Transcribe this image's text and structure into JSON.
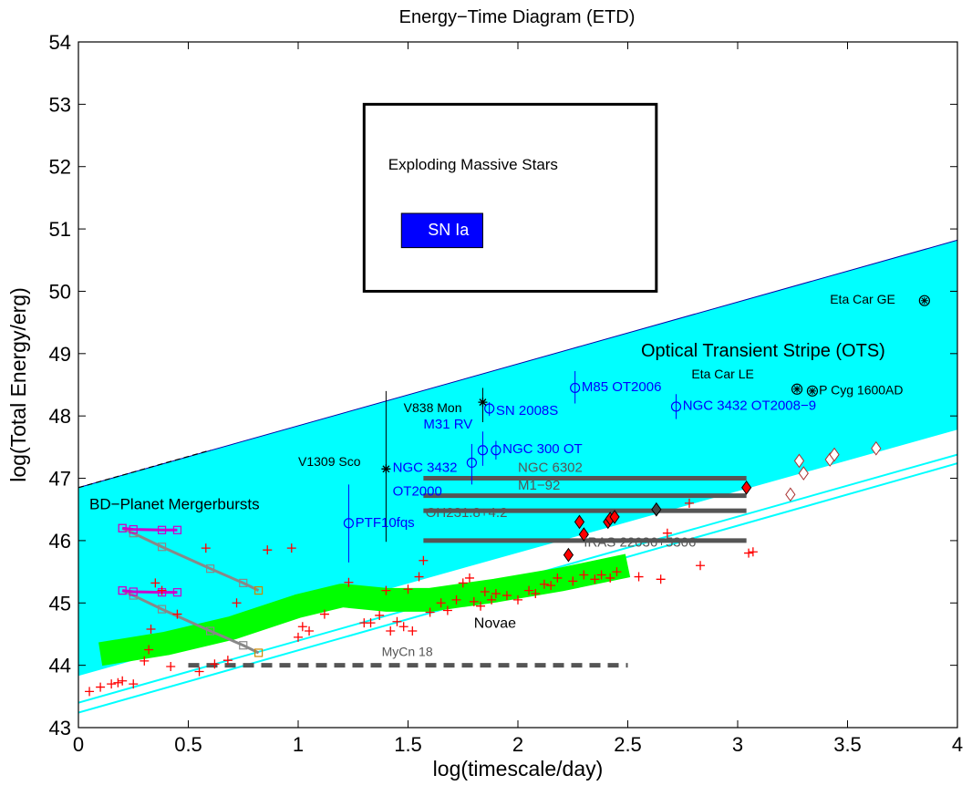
{
  "chart_data": {
    "type": "scatter",
    "title": "Energy−Time Diagram (ETD)",
    "xlabel": "log(timescale/day)",
    "ylabel": "log(Total Energy/erg)",
    "xlim": [
      0,
      4
    ],
    "ylim": [
      43,
      54
    ],
    "xticks": [
      "0",
      "0.5",
      "1",
      "1.5",
      "2",
      "2.5",
      "3",
      "3.5",
      "4"
    ],
    "yticks": [
      "43",
      "44",
      "45",
      "46",
      "47",
      "48",
      "49",
      "50",
      "51",
      "52",
      "53",
      "54"
    ],
    "grid": false,
    "colors": {
      "stripe": "#00ffff",
      "novae": "#00ff00",
      "blue_label": "#0000ff",
      "crosses": "#ff0000",
      "bars": "#555555",
      "diamond_filled": "#ff0000",
      "magenta": "#cc00cc",
      "orange": "#cc8800"
    },
    "stripe": {
      "x": [
        0,
        4
      ],
      "upper": [
        46.85,
        50.82
      ],
      "lower": [
        43.83,
        47.78
      ]
    },
    "white_lines": [
      {
        "x": [
          0,
          4
        ],
        "y": [
          43.62,
          47.58
        ]
      },
      {
        "x": [
          0,
          4
        ],
        "y": [
          43.47,
          47.43
        ]
      }
    ],
    "cyan_lines": [
      {
        "x": [
          0,
          4
        ],
        "y": [
          43.4,
          47.38
        ]
      },
      {
        "x": [
          0,
          4
        ],
        "y": [
          43.24,
          47.24
        ]
      }
    ],
    "novae_band": {
      "x": [
        0.1,
        0.4,
        0.7,
        1.0,
        1.2,
        1.4,
        1.6,
        1.9,
        2.2,
        2.5
      ],
      "y": [
        44.18,
        44.35,
        44.6,
        44.95,
        45.12,
        45.05,
        45.05,
        45.2,
        45.38,
        45.6
      ]
    },
    "box": {
      "x0": 1.3,
      "x1": 2.63,
      "y0": 50.0,
      "y1": 53.0
    },
    "sn_ia_rect": {
      "x0": 1.47,
      "x1": 1.84,
      "y0": 50.7,
      "y1": 51.25
    },
    "horizontal_bars": [
      {
        "label": "NGC 6302",
        "x0": 1.57,
        "x1": 3.04,
        "y": 47.0
      },
      {
        "label": "M1−92",
        "x0": 1.57,
        "x1": 3.04,
        "y": 46.72
      },
      {
        "label": "OH231.8+4.2",
        "x0": 1.57,
        "x1": 3.04,
        "y": 46.48
      },
      {
        "label": "IRAS 22036+5306",
        "x0": 1.57,
        "x1": 3.04,
        "y": 46.0
      }
    ],
    "mycn18": {
      "label": "MyCn 18",
      "x0": 0.5,
      "x1": 2.5,
      "y": 44.0
    },
    "bd_tracks": [
      {
        "color": "#888888",
        "x": [
          0.2,
          0.25,
          0.38,
          0.6,
          0.75,
          0.82
        ],
        "y": [
          46.2,
          46.12,
          45.9,
          45.55,
          45.32,
          45.2
        ]
      },
      {
        "color": "#888888",
        "x": [
          0.2,
          0.25,
          0.38,
          0.6,
          0.75,
          0.82
        ],
        "y": [
          45.2,
          45.12,
          44.9,
          44.55,
          44.32,
          44.2
        ]
      },
      {
        "color": "#cc00cc",
        "x": [
          0.2,
          0.25,
          0.38,
          0.45
        ],
        "y": [
          46.2,
          46.18,
          46.17,
          46.17
        ]
      },
      {
        "color": "#cc00cc",
        "x": [
          0.2,
          0.25,
          0.38,
          0.45
        ],
        "y": [
          45.2,
          45.18,
          45.17,
          45.17
        ]
      }
    ],
    "red_crosses": {
      "x": [
        0.05,
        0.1,
        0.15,
        0.18,
        0.2,
        0.25,
        0.3,
        0.32,
        0.33,
        0.35,
        0.38,
        0.42,
        0.45,
        0.55,
        0.58,
        0.62,
        0.68,
        0.72,
        0.86,
        0.97,
        1.0,
        1.02,
        1.05,
        1.12,
        1.23,
        1.3,
        1.33,
        1.37,
        1.4,
        1.42,
        1.45,
        1.48,
        1.5,
        1.52,
        1.55,
        1.57,
        1.6,
        1.65,
        1.68,
        1.72,
        1.75,
        1.78,
        1.8,
        1.83,
        1.85,
        1.88,
        1.9,
        1.95,
        2.0,
        2.05,
        2.08,
        2.12,
        2.15,
        2.18,
        2.25,
        2.3,
        2.35,
        2.38,
        2.42,
        2.45,
        2.55,
        2.65,
        2.68,
        2.78,
        2.83,
        3.05,
        3.07
      ],
      "y": [
        43.58,
        43.65,
        43.7,
        43.72,
        43.75,
        43.7,
        44.07,
        44.25,
        44.58,
        45.32,
        45.2,
        43.98,
        44.82,
        43.9,
        45.88,
        44.02,
        44.08,
        45.0,
        45.85,
        45.88,
        44.45,
        44.62,
        44.55,
        44.82,
        45.33,
        44.68,
        44.68,
        44.8,
        45.2,
        44.55,
        44.7,
        44.62,
        45.22,
        44.55,
        45.42,
        45.68,
        44.85,
        45.0,
        44.88,
        45.05,
        45.32,
        45.4,
        45.02,
        44.95,
        45.18,
        45.05,
        45.15,
        45.12,
        45.05,
        45.2,
        45.15,
        45.3,
        45.28,
        45.4,
        45.35,
        45.45,
        45.38,
        45.45,
        45.4,
        45.5,
        45.42,
        45.38,
        46.12,
        46.6,
        45.6,
        45.8,
        45.82
      ]
    },
    "filled_diamonds": {
      "x": [
        2.23,
        2.28,
        2.3,
        2.41,
        2.42,
        2.44,
        2.63,
        3.04
      ],
      "y": [
        45.77,
        46.3,
        46.1,
        46.3,
        46.35,
        46.38,
        46.5,
        46.85
      ]
    },
    "open_diamonds": {
      "x": [
        3.24,
        3.28,
        3.3,
        3.42,
        3.44,
        3.63
      ],
      "y": [
        46.74,
        47.28,
        47.08,
        47.3,
        47.38,
        47.48
      ]
    },
    "open_circles": [
      {
        "label": "PTF10fqs",
        "x": 1.23,
        "y": 46.28,
        "err": [
          45.65,
          46.9
        ]
      },
      {
        "label": "NGC 300 OT",
        "x": 1.9,
        "y": 47.45,
        "err": [
          47.3,
          47.6
        ]
      },
      {
        "label": "SN 2008S",
        "x": 1.87,
        "y": 48.12,
        "err": [
          48.0,
          48.22
        ]
      },
      {
        "label": "M85 OT2006",
        "x": 2.26,
        "y": 48.45,
        "err": [
          48.2,
          48.72
        ]
      },
      {
        "label": "NGC 3432 OT2008−9",
        "x": 2.72,
        "y": 48.15,
        "err": [
          47.95,
          48.35
        ]
      },
      {
        "label": "M31 RV",
        "x": 1.84,
        "y": 47.45,
        "err": [
          47.2,
          47.75
        ]
      },
      {
        "label": "",
        "x": 1.79,
        "y": 47.25,
        "err": [
          46.9,
          47.55
        ]
      }
    ],
    "stars": [
      {
        "label": "V838 Mon",
        "x": 1.84,
        "y": 48.22,
        "err": [
          47.9,
          48.45
        ]
      },
      {
        "label": "V1309 Sco",
        "x": 1.4,
        "y": 47.15,
        "err": [
          45.98,
          48.4
        ]
      }
    ],
    "circle_stars": [
      {
        "label": "Eta Car GE",
        "x": 3.85,
        "y": 49.85
      },
      {
        "label": "Eta Car LE",
        "x": 3.27,
        "y": 48.43
      },
      {
        "label": "P Cyg 1600AD",
        "x": 3.34,
        "y": 48.4
      }
    ],
    "annotations": [
      {
        "text": "Exploding Massive Stars",
        "x": 1.41,
        "y": 51.95,
        "color": "#000000",
        "size": 17
      },
      {
        "text": "SN Ia",
        "x": 1.59,
        "y": 50.9,
        "color": "#ffffff",
        "size": 18
      },
      {
        "text": "Optical Transient Stripe (OTS)",
        "x": 2.56,
        "y": 48.95,
        "color": "#000000",
        "size": 20
      },
      {
        "text": "Eta Car GE",
        "x": 3.42,
        "y": 49.8,
        "color": "#000000",
        "size": 14
      },
      {
        "text": "Eta Car LE",
        "x": 2.79,
        "y": 48.6,
        "color": "#000000",
        "size": 14
      },
      {
        "text": "P Cyg 1600AD",
        "x": 3.37,
        "y": 48.35,
        "color": "#000000",
        "size": 14
      },
      {
        "text": "V838 Mon",
        "x": 1.48,
        "y": 48.06,
        "color": "#000000",
        "size": 14
      },
      {
        "text": "V1309 Sco",
        "x": 1.0,
        "y": 47.2,
        "color": "#000000",
        "size": 14
      },
      {
        "text": "M85 OT2006",
        "x": 2.29,
        "y": 48.4,
        "color": "#0000ff",
        "size": 15
      },
      {
        "text": "NGC 3432 OT2008−9",
        "x": 2.75,
        "y": 48.1,
        "color": "#0000ff",
        "size": 15
      },
      {
        "text": "SN 2008S",
        "x": 1.9,
        "y": 48.02,
        "color": "#0000ff",
        "size": 15
      },
      {
        "text": "M31 RV",
        "x": 1.57,
        "y": 47.8,
        "color": "#0000ff",
        "size": 15
      },
      {
        "text": "NGC 300 OT",
        "x": 1.93,
        "y": 47.4,
        "color": "#0000ff",
        "size": 15
      },
      {
        "text": "NGC 3432",
        "x": 1.43,
        "y": 47.1,
        "color": "#0000ff",
        "size": 15
      },
      {
        "text": "OT2000",
        "x": 1.43,
        "y": 46.72,
        "color": "#0000ff",
        "size": 15
      },
      {
        "text": "PTF10fqs",
        "x": 1.26,
        "y": 46.22,
        "color": "#0000ff",
        "size": 15
      },
      {
        "text": "NGC 6302",
        "x": 2.0,
        "y": 47.1,
        "color": "#555555",
        "size": 15
      },
      {
        "text": "M1−92",
        "x": 2.0,
        "y": 46.82,
        "color": "#555555",
        "size": 15
      },
      {
        "text": "OH231.8+4.2",
        "x": 1.58,
        "y": 46.38,
        "color": "#555555",
        "size": 15
      },
      {
        "text": "IRAS 22036+5306",
        "x": 2.3,
        "y": 45.9,
        "color": "#555555",
        "size": 15
      },
      {
        "text": "BD−Planet Mergerbursts",
        "x": 0.05,
        "y": 46.5,
        "color": "#000000",
        "size": 17
      },
      {
        "text": "Novae",
        "x": 1.8,
        "y": 44.6,
        "color": "#000000",
        "size": 16
      },
      {
        "text": "MyCn 18",
        "x": 1.38,
        "y": 44.15,
        "color": "#555555",
        "size": 14
      }
    ]
  }
}
